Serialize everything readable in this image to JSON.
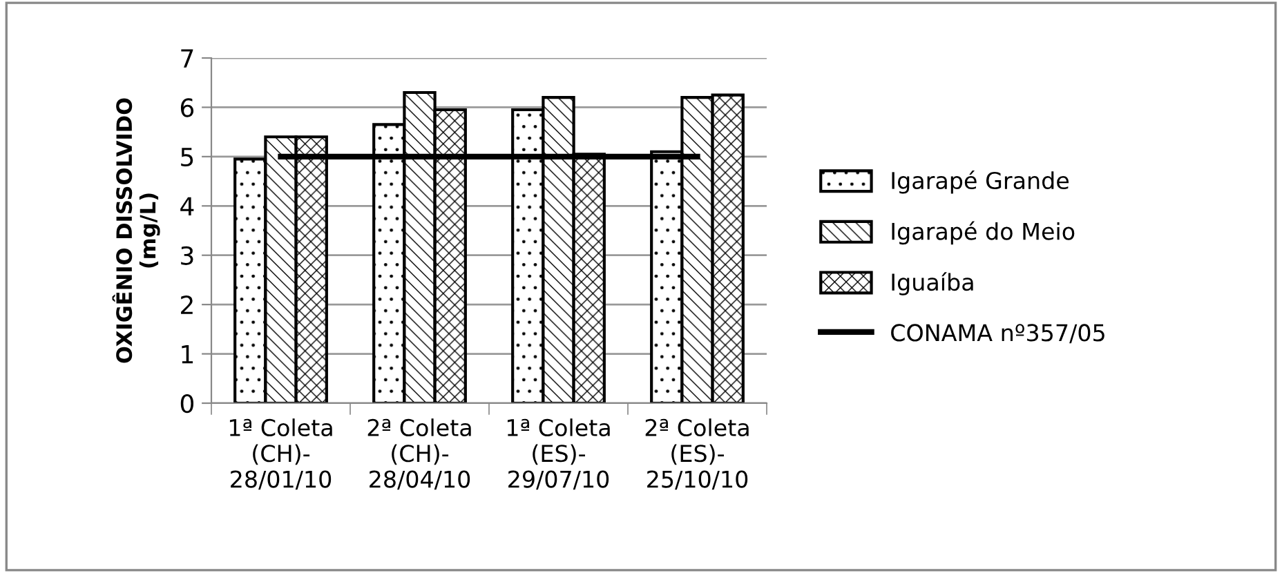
{
  "chart_data": {
    "type": "bar",
    "ylabel": "OXIGÊNIO DISSOLVIDO\n(mg/L)",
    "categories": [
      "1ª Coleta\n(CH)-\n28/01/10",
      "2ª Coleta\n(CH)-\n28/04/10",
      "1ª Coleta\n(ES)-\n29/07/10",
      "2ª Coleta\n(ES)-\n25/10/10"
    ],
    "series": [
      {
        "name": "Igarapé Grande",
        "color": "#000000",
        "values": [
          4.95,
          5.65,
          5.95,
          5.1
        ]
      },
      {
        "name": "Igarapé do Meio",
        "color": "#000000",
        "values": [
          5.4,
          6.3,
          6.2,
          6.2
        ]
      },
      {
        "name": "Iguaíba",
        "color": "#000000",
        "values": [
          5.4,
          5.95,
          5.05,
          6.25
        ]
      },
      {
        "name": "CONAMA nº357/05",
        "type": "line",
        "color": "#000000",
        "values": [
          5,
          5,
          5,
          5
        ]
      }
    ],
    "ylim": [
      0,
      7
    ],
    "yticks": [
      0,
      1,
      2,
      3,
      4,
      5,
      6,
      7
    ],
    "grid": "y",
    "legend": "right"
  }
}
